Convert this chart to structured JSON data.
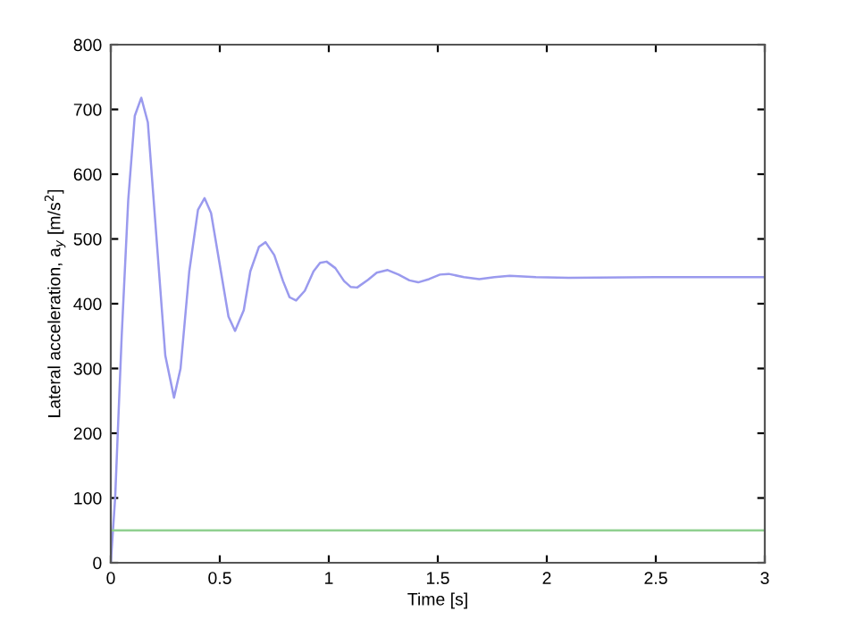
{
  "chart_data": {
    "type": "line",
    "xlabel": "Time [s]",
    "ylabel": "Lateral acceleration, a$_{y}$ [m/s$^{2}$]",
    "xlim": [
      0,
      3
    ],
    "xticks": [
      0,
      0.5,
      1,
      1.5,
      2,
      2.5,
      3
    ],
    "ylim": [
      0,
      800
    ],
    "yticks": [
      0,
      100,
      200,
      300,
      400,
      500,
      600,
      700,
      800
    ],
    "grid": false,
    "line_style": "solid",
    "marker": "none",
    "series": [
      {
        "color": "#9a9aee",
        "x": [
          0,
          0.02,
          0.05,
          0.08,
          0.11,
          0.14,
          0.17,
          0.21,
          0.25,
          0.29,
          0.32,
          0.36,
          0.4,
          0.43,
          0.46,
          0.5,
          0.54,
          0.57,
          0.61,
          0.64,
          0.68,
          0.71,
          0.75,
          0.79,
          0.82,
          0.85,
          0.89,
          0.93,
          0.96,
          0.99,
          1.03,
          1.07,
          1.1,
          1.13,
          1.18,
          1.22,
          1.27,
          1.32,
          1.37,
          1.41,
          1.46,
          1.51,
          1.55,
          1.62,
          1.69,
          1.76,
          1.83,
          1.95,
          2.1,
          2.5,
          3.0
        ],
        "values": [
          0,
          100,
          350,
          560,
          690,
          718,
          680,
          500,
          320,
          255,
          300,
          450,
          545,
          563,
          540,
          460,
          380,
          358,
          390,
          450,
          488,
          495,
          475,
          435,
          410,
          405,
          420,
          450,
          463,
          465,
          455,
          435,
          426,
          425,
          437,
          448,
          452,
          445,
          436,
          433,
          438,
          445,
          446,
          441,
          438,
          441,
          443,
          441,
          440,
          441,
          441
        ]
      },
      {
        "color": "#90d090",
        "x": [
          0,
          3
        ],
        "values": [
          50,
          50
        ]
      }
    ]
  }
}
